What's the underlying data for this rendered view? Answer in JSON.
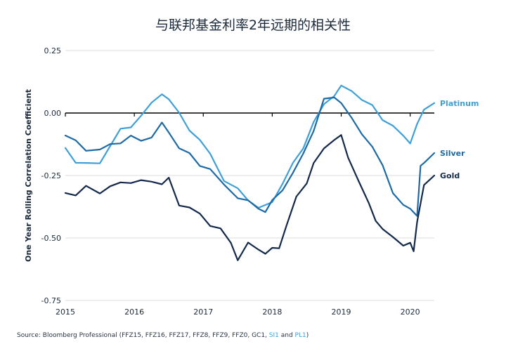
{
  "chart_data": {
    "type": "line",
    "title": "与联邦基金利率2年远期的相关性",
    "ylabel": "One Year Rolling Correlation Coefficient",
    "xlabel": "",
    "xlim": [
      2015.0,
      2020.35
    ],
    "ylim": [
      -0.75,
      0.25
    ],
    "y_ticks": [
      0.25,
      0.0,
      -0.25,
      -0.5,
      -0.75
    ],
    "y_tick_labels": [
      "0.25",
      "0.00",
      "-0.25",
      "-0.50",
      "-0.75"
    ],
    "x_ticks": [
      2015,
      2016,
      2017,
      2018,
      2019,
      2020
    ],
    "x_tick_labels": [
      "2015",
      "2016",
      "2017",
      "2018",
      "2019",
      "2020"
    ],
    "grid": true,
    "series": [
      {
        "name": "Platinum",
        "color": "#3ea0d6",
        "x": [
          2015.0,
          2015.15,
          2015.3,
          2015.5,
          2015.65,
          2015.8,
          2015.95,
          2016.1,
          2016.25,
          2016.4,
          2016.5,
          2016.65,
          2016.8,
          2016.95,
          2017.1,
          2017.3,
          2017.5,
          2017.65,
          2017.8,
          2017.9,
          2018.0,
          2018.15,
          2018.3,
          2018.45,
          2018.6,
          2018.75,
          2018.9,
          2019.0,
          2019.15,
          2019.3,
          2019.45,
          2019.6,
          2019.75,
          2019.9,
          2020.0,
          2020.1,
          2020.2,
          2020.35
        ],
        "y": [
          -0.14,
          -0.19,
          -0.2,
          -0.21,
          -0.12,
          -0.07,
          -0.06,
          0.0,
          0.03,
          0.08,
          0.06,
          -0.01,
          -0.06,
          -0.11,
          -0.17,
          -0.26,
          -0.31,
          -0.35,
          -0.37,
          -0.38,
          -0.35,
          -0.28,
          -0.21,
          -0.13,
          -0.04,
          0.03,
          0.08,
          0.1,
          0.09,
          0.06,
          0.02,
          -0.02,
          -0.05,
          -0.1,
          -0.11,
          -0.05,
          0.01,
          0.04
        ]
      },
      {
        "name": "Silver",
        "color": "#1d6aa5",
        "x": [
          2015.0,
          2015.15,
          2015.3,
          2015.5,
          2015.65,
          2015.8,
          2015.95,
          2016.1,
          2016.25,
          2016.4,
          2016.5,
          2016.65,
          2016.8,
          2016.95,
          2017.1,
          2017.3,
          2017.5,
          2017.65,
          2017.8,
          2017.9,
          2018.0,
          2018.15,
          2018.3,
          2018.45,
          2018.6,
          2018.75,
          2018.9,
          2019.0,
          2019.15,
          2019.3,
          2019.45,
          2019.6,
          2019.75,
          2019.9,
          2020.0,
          2020.1,
          2020.15,
          2020.2,
          2020.35
        ],
        "y": [
          -0.09,
          -0.12,
          -0.14,
          -0.15,
          -0.13,
          -0.11,
          -0.1,
          -0.11,
          -0.09,
          -0.05,
          -0.07,
          -0.14,
          -0.17,
          -0.2,
          -0.23,
          -0.29,
          -0.33,
          -0.36,
          -0.38,
          -0.39,
          -0.36,
          -0.3,
          -0.24,
          -0.17,
          -0.06,
          0.05,
          0.06,
          0.05,
          -0.03,
          -0.08,
          -0.13,
          -0.22,
          -0.31,
          -0.37,
          -0.39,
          -0.4,
          -0.22,
          -0.2,
          -0.16
        ]
      },
      {
        "name": "Gold",
        "color": "#13294b",
        "x": [
          2015.0,
          2015.15,
          2015.3,
          2015.5,
          2015.65,
          2015.8,
          2015.95,
          2016.1,
          2016.25,
          2016.4,
          2016.5,
          2016.65,
          2016.8,
          2016.95,
          2017.1,
          2017.25,
          2017.4,
          2017.5,
          2017.65,
          2017.8,
          2017.9,
          2018.0,
          2018.1,
          2018.2,
          2018.35,
          2018.5,
          2018.6,
          2018.75,
          2018.9,
          2019.0,
          2019.1,
          2019.25,
          2019.4,
          2019.5,
          2019.6,
          2019.75,
          2019.9,
          2020.0,
          2020.05,
          2020.1,
          2020.2,
          2020.35
        ],
        "y": [
          -0.32,
          -0.33,
          -0.3,
          -0.31,
          -0.3,
          -0.28,
          -0.27,
          -0.28,
          -0.27,
          -0.28,
          -0.27,
          -0.36,
          -0.38,
          -0.41,
          -0.44,
          -0.47,
          -0.52,
          -0.58,
          -0.53,
          -0.54,
          -0.56,
          -0.55,
          -0.53,
          -0.46,
          -0.34,
          -0.27,
          -0.21,
          -0.14,
          -0.1,
          -0.1,
          -0.17,
          -0.27,
          -0.37,
          -0.42,
          -0.47,
          -0.5,
          -0.52,
          -0.53,
          -0.55,
          -0.43,
          -0.3,
          -0.25
        ]
      }
    ],
    "source": {
      "prefix": "Source: Bloomberg Professional (FFZ15, FFZ16, FFZ17, FFZ8, FFZ9, FFZ0, GC1, ",
      "si1": "SI1",
      "and": " and ",
      "pl1": "PL1",
      "suffix": ")"
    }
  }
}
